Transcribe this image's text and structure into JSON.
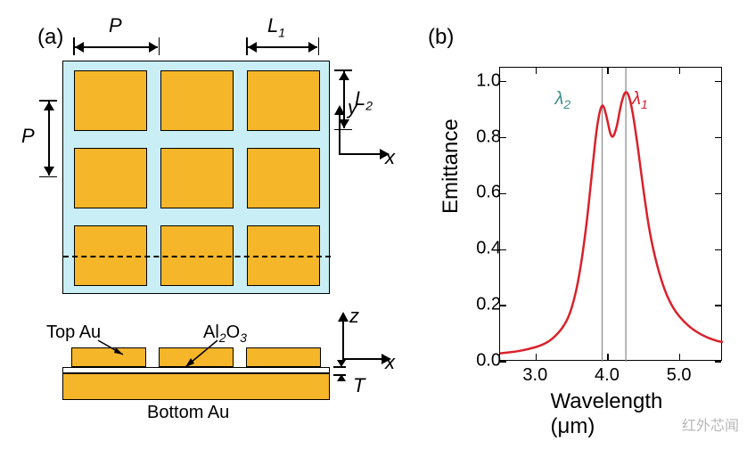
{
  "panel_a": {
    "label": "(a)",
    "topview": {
      "bg_color": "#c9eef5",
      "patch_color": "#f6b62a",
      "dim_P": "P",
      "dim_L1": "L",
      "dim_L1_sub": "1",
      "dim_L2": "L",
      "dim_L2_sub": "2",
      "axis_x": "x",
      "axis_y": "y"
    },
    "cross_section": {
      "top_au_label": "Top Au",
      "al2o3_label": "Al",
      "al2o3_sub": "2",
      "al2o3_mid": "O",
      "al2o3_sub2": "3",
      "bottom_au_label": "Bottom Au",
      "axis_x": "x",
      "axis_z": "z",
      "dim_T": "T"
    }
  },
  "panel_b": {
    "label": "(b)",
    "chart": {
      "type": "line",
      "xlabel": "Wavelength (μm)",
      "ylabel": "Emittance",
      "xlim": [
        2.5,
        5.6
      ],
      "ylim": [
        0.0,
        1.05
      ],
      "xticks": [
        3.0,
        4.0,
        5.0
      ],
      "yticks": [
        0.0,
        0.2,
        0.4,
        0.6,
        0.8,
        1.0
      ],
      "line_color": "#d9212b",
      "line_width": 2.5,
      "vlines": [
        {
          "x": 3.92,
          "label": "λ",
          "label_sub": "2",
          "color": "#3a8a8a"
        },
        {
          "x": 4.25,
          "label": "λ",
          "label_sub": "1",
          "color": "#d9212b"
        }
      ],
      "series": [
        {
          "x": 2.5,
          "y": 0.03
        },
        {
          "x": 2.7,
          "y": 0.035
        },
        {
          "x": 2.9,
          "y": 0.045
        },
        {
          "x": 3.1,
          "y": 0.06
        },
        {
          "x": 3.25,
          "y": 0.085
        },
        {
          "x": 3.4,
          "y": 0.13
        },
        {
          "x": 3.5,
          "y": 0.19
        },
        {
          "x": 3.6,
          "y": 0.3
        },
        {
          "x": 3.7,
          "y": 0.48
        },
        {
          "x": 3.78,
          "y": 0.68
        },
        {
          "x": 3.85,
          "y": 0.85
        },
        {
          "x": 3.92,
          "y": 0.93
        },
        {
          "x": 3.98,
          "y": 0.88
        },
        {
          "x": 4.05,
          "y": 0.79
        },
        {
          "x": 4.12,
          "y": 0.83
        },
        {
          "x": 4.18,
          "y": 0.92
        },
        {
          "x": 4.25,
          "y": 0.975
        },
        {
          "x": 4.32,
          "y": 0.93
        },
        {
          "x": 4.4,
          "y": 0.8
        },
        {
          "x": 4.5,
          "y": 0.6
        },
        {
          "x": 4.6,
          "y": 0.43
        },
        {
          "x": 4.75,
          "y": 0.28
        },
        {
          "x": 4.9,
          "y": 0.19
        },
        {
          "x": 5.1,
          "y": 0.13
        },
        {
          "x": 5.3,
          "y": 0.095
        },
        {
          "x": 5.5,
          "y": 0.075
        },
        {
          "x": 5.6,
          "y": 0.07
        }
      ],
      "tick_fontsize": 20,
      "label_fontsize": 24
    }
  },
  "watermark": "红外芯闻"
}
